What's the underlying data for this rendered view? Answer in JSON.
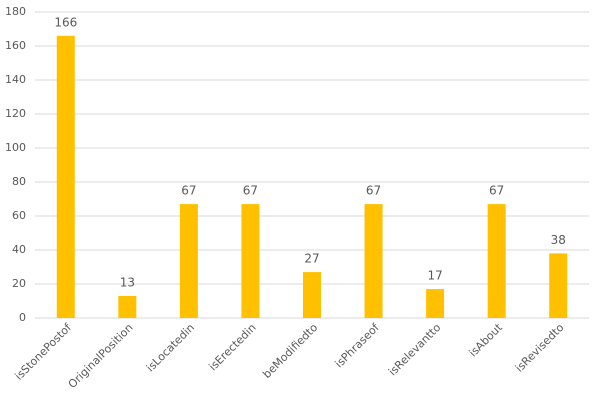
{
  "chart_data": {
    "type": "bar",
    "categories": [
      "isStonePostof",
      "OriginalPosition",
      "isLocatedin",
      "isErectedin",
      "beModifiedto",
      "isPhraseof",
      "isRelevantto",
      "isAbout",
      "isRevisedto"
    ],
    "values": [
      166,
      13,
      67,
      67,
      27,
      67,
      17,
      67,
      38
    ],
    "color": "#ffc000",
    "ylim": [
      0,
      180
    ],
    "yticks": [
      0,
      20,
      40,
      60,
      80,
      100,
      120,
      140,
      160,
      180
    ],
    "grid": true
  }
}
